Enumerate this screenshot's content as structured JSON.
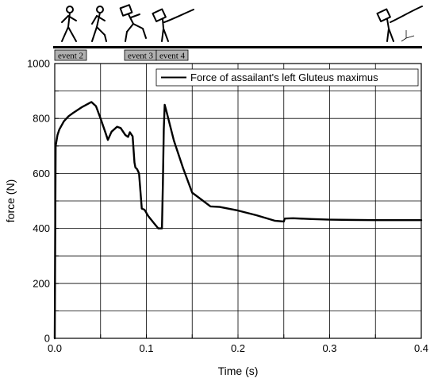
{
  "chart_data": {
    "type": "line",
    "xlabel": "Time (s)",
    "ylabel": "force (N)",
    "xlim": [
      0.0,
      0.4
    ],
    "ylim": [
      0,
      1000
    ],
    "x_ticks": [
      "0.0",
      "0.1",
      "0.2",
      "0.3",
      "0.4"
    ],
    "y_ticks": [
      "0",
      "200",
      "400",
      "600",
      "800",
      "1000"
    ],
    "grid": true,
    "legend_position": "top-right",
    "event_labels": [
      "event 2",
      "event 3",
      "event 4"
    ],
    "event_times": [
      0.0,
      0.085,
      0.11
    ],
    "colors": {
      "line": "#000000",
      "background": "#ffffff",
      "event_box": "#b0b0b0"
    },
    "series": [
      {
        "name": "Force of assailant's left Gluteus maximus",
        "x": [
          0.0,
          0.001,
          0.003,
          0.005,
          0.01,
          0.015,
          0.02,
          0.03,
          0.04,
          0.045,
          0.05,
          0.055,
          0.058,
          0.062,
          0.068,
          0.072,
          0.077,
          0.08,
          0.082,
          0.085,
          0.087,
          0.088,
          0.09,
          0.092,
          0.095,
          0.098,
          0.102,
          0.108,
          0.113,
          0.117,
          0.118,
          0.119,
          0.12,
          0.122,
          0.13,
          0.14,
          0.15,
          0.16,
          0.17,
          0.18,
          0.2,
          0.22,
          0.24,
          0.25,
          0.251,
          0.26,
          0.28,
          0.3,
          0.32,
          0.35,
          0.38,
          0.4
        ],
        "y": [
          0,
          700,
          740,
          760,
          790,
          808,
          820,
          842,
          860,
          845,
          800,
          752,
          722,
          752,
          770,
          765,
          740,
          733,
          750,
          735,
          640,
          622,
          615,
          600,
          472,
          468,
          445,
          420,
          400,
          400,
          560,
          760,
          850,
          825,
          720,
          620,
          530,
          505,
          480,
          478,
          465,
          448,
          428,
          425,
          436,
          437,
          434,
          432,
          431,
          430,
          430,
          430
        ]
      }
    ]
  }
}
